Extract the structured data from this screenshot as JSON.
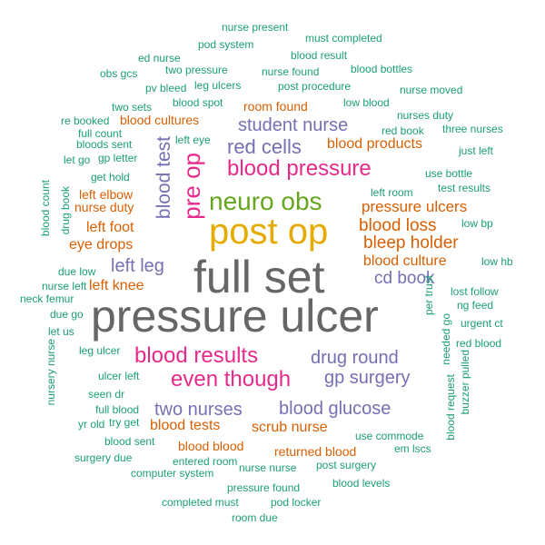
{
  "palette": {
    "teal": "#1b9e77",
    "orange": "#d95f02",
    "purple": "#7570b3",
    "pink": "#e7298a",
    "green": "#66a61e",
    "gold": "#e6ab02",
    "grey": "#666666"
  },
  "words": [
    {
      "text": "pressure ulcer",
      "freq": 10,
      "color": "grey"
    },
    {
      "text": "full set",
      "freq": 9.4,
      "color": "grey"
    },
    {
      "text": "post op",
      "freq": 7.8,
      "color": "gold"
    },
    {
      "text": "neuro obs",
      "freq": 6.4,
      "color": "green"
    },
    {
      "text": "pre op",
      "freq": 6.0,
      "color": "pink"
    },
    {
      "text": "blood pressure",
      "freq": 6.0,
      "color": "pink"
    },
    {
      "text": "blood results",
      "freq": 6.0,
      "color": "pink"
    },
    {
      "text": "blood test",
      "freq": 5.5,
      "color": "purple"
    },
    {
      "text": "even though",
      "freq": 5.6,
      "color": "pink"
    },
    {
      "text": "red cells",
      "freq": 5.2,
      "color": "purple"
    },
    {
      "text": "left leg",
      "freq": 4.8,
      "color": "purple"
    },
    {
      "text": "student nurse",
      "freq": 4.8,
      "color": "purple"
    },
    {
      "text": "drug round",
      "freq": 4.8,
      "color": "purple"
    },
    {
      "text": "two nurses",
      "freq": 4.8,
      "color": "purple"
    },
    {
      "text": "blood glucose",
      "freq": 4.8,
      "color": "purple"
    },
    {
      "text": "gp surgery",
      "freq": 4.6,
      "color": "purple"
    },
    {
      "text": "blood loss",
      "freq": 4.4,
      "color": "orange"
    },
    {
      "text": "bleep holder",
      "freq": 4.4,
      "color": "orange"
    },
    {
      "text": "cd book",
      "freq": 4.2,
      "color": "purple"
    },
    {
      "text": "pressure ulcers",
      "freq": 4.0,
      "color": "orange"
    },
    {
      "text": "blood products",
      "freq": 3.8,
      "color": "orange"
    },
    {
      "text": "left foot",
      "freq": 3.8,
      "color": "orange"
    },
    {
      "text": "blood culture",
      "freq": 3.8,
      "color": "orange"
    },
    {
      "text": "eye drops",
      "freq": 3.8,
      "color": "orange"
    },
    {
      "text": "left knee",
      "freq": 3.8,
      "color": "orange"
    },
    {
      "text": "blood tests",
      "freq": 3.8,
      "color": "orange"
    },
    {
      "text": "scrub nurse",
      "freq": 3.8,
      "color": "orange"
    },
    {
      "text": "room found",
      "freq": 3.3,
      "color": "orange"
    },
    {
      "text": "blood cultures",
      "freq": 3.3,
      "color": "orange"
    },
    {
      "text": "left elbow",
      "freq": 3.3,
      "color": "orange"
    },
    {
      "text": "nurse duty",
      "freq": 3.3,
      "color": "orange"
    },
    {
      "text": "blood blood",
      "freq": 3.3,
      "color": "orange"
    },
    {
      "text": "returned blood",
      "freq": 3.3,
      "color": "orange"
    },
    {
      "text": "nurse present",
      "freq": 2.7,
      "color": "teal"
    },
    {
      "text": "must completed",
      "freq": 2.7,
      "color": "teal"
    },
    {
      "text": "pod system",
      "freq": 2.7,
      "color": "teal"
    },
    {
      "text": "ed nurse",
      "freq": 2.7,
      "color": "teal"
    },
    {
      "text": "blood result",
      "freq": 2.7,
      "color": "teal"
    },
    {
      "text": "obs gcs",
      "freq": 2.7,
      "color": "teal"
    },
    {
      "text": "two pressure",
      "freq": 2.7,
      "color": "teal"
    },
    {
      "text": "nurse found",
      "freq": 2.7,
      "color": "teal"
    },
    {
      "text": "blood bottles",
      "freq": 2.7,
      "color": "teal"
    },
    {
      "text": "pv bleed",
      "freq": 2.7,
      "color": "teal"
    },
    {
      "text": "leg ulcers",
      "freq": 2.7,
      "color": "teal"
    },
    {
      "text": "post procedure",
      "freq": 2.7,
      "color": "teal"
    },
    {
      "text": "nurse moved",
      "freq": 2.7,
      "color": "teal"
    },
    {
      "text": "two sets",
      "freq": 2.7,
      "color": "teal"
    },
    {
      "text": "blood spot",
      "freq": 2.7,
      "color": "teal"
    },
    {
      "text": "low blood",
      "freq": 2.7,
      "color": "teal"
    },
    {
      "text": "re booked",
      "freq": 2.7,
      "color": "teal"
    },
    {
      "text": "nurses duty",
      "freq": 2.7,
      "color": "teal"
    },
    {
      "text": "full count",
      "freq": 2.7,
      "color": "teal"
    },
    {
      "text": "red book",
      "freq": 2.7,
      "color": "teal"
    },
    {
      "text": "three nurses",
      "freq": 2.7,
      "color": "teal"
    },
    {
      "text": "bloods sent",
      "freq": 2.7,
      "color": "teal"
    },
    {
      "text": "left eye",
      "freq": 2.7,
      "color": "teal"
    },
    {
      "text": "just left",
      "freq": 2.7,
      "color": "teal"
    },
    {
      "text": "let go",
      "freq": 2.7,
      "color": "teal"
    },
    {
      "text": "gp letter",
      "freq": 2.7,
      "color": "teal"
    },
    {
      "text": "get hold",
      "freq": 2.7,
      "color": "teal"
    },
    {
      "text": "use bottle",
      "freq": 2.7,
      "color": "teal"
    },
    {
      "text": "drug book",
      "freq": 2.7,
      "color": "teal"
    },
    {
      "text": "test results",
      "freq": 2.7,
      "color": "teal"
    },
    {
      "text": "blood count",
      "freq": 2.7,
      "color": "teal"
    },
    {
      "text": "left room",
      "freq": 2.7,
      "color": "teal"
    },
    {
      "text": "low bp",
      "freq": 2.7,
      "color": "teal"
    },
    {
      "text": "low hb",
      "freq": 2.7,
      "color": "teal"
    },
    {
      "text": "due low",
      "freq": 2.7,
      "color": "teal"
    },
    {
      "text": "nurse left",
      "freq": 2.7,
      "color": "teal"
    },
    {
      "text": "lost follow",
      "freq": 2.7,
      "color": "teal"
    },
    {
      "text": "neck femur",
      "freq": 2.7,
      "color": "teal"
    },
    {
      "text": "per trust",
      "freq": 2.7,
      "color": "teal"
    },
    {
      "text": "ng feed",
      "freq": 2.7,
      "color": "teal"
    },
    {
      "text": "due go",
      "freq": 2.7,
      "color": "teal"
    },
    {
      "text": "urgent ct",
      "freq": 2.7,
      "color": "teal"
    },
    {
      "text": "let us",
      "freq": 2.7,
      "color": "teal"
    },
    {
      "text": "needed go",
      "freq": 2.7,
      "color": "teal"
    },
    {
      "text": "red blood",
      "freq": 2.7,
      "color": "teal"
    },
    {
      "text": "leg ulcer",
      "freq": 2.7,
      "color": "teal"
    },
    {
      "text": "nursery nurse",
      "freq": 2.7,
      "color": "teal"
    },
    {
      "text": "buzzer pulled",
      "freq": 2.7,
      "color": "teal"
    },
    {
      "text": "ulcer left",
      "freq": 2.7,
      "color": "teal"
    },
    {
      "text": "seen dr",
      "freq": 2.7,
      "color": "teal"
    },
    {
      "text": "full blood",
      "freq": 2.7,
      "color": "teal"
    },
    {
      "text": "blood request",
      "freq": 2.7,
      "color": "teal"
    },
    {
      "text": "yr old",
      "freq": 2.7,
      "color": "teal"
    },
    {
      "text": "try get",
      "freq": 2.7,
      "color": "teal"
    },
    {
      "text": "use commode",
      "freq": 2.7,
      "color": "teal"
    },
    {
      "text": "blood sent",
      "freq": 2.7,
      "color": "teal"
    },
    {
      "text": "em lscs",
      "freq": 2.7,
      "color": "teal"
    },
    {
      "text": "surgery due",
      "freq": 2.7,
      "color": "teal"
    },
    {
      "text": "entered room",
      "freq": 2.7,
      "color": "teal"
    },
    {
      "text": "nurse nurse",
      "freq": 2.7,
      "color": "teal"
    },
    {
      "text": "post surgery",
      "freq": 2.7,
      "color": "teal"
    },
    {
      "text": "computer system",
      "freq": 2.7,
      "color": "teal"
    },
    {
      "text": "pressure found",
      "freq": 2.7,
      "color": "teal"
    },
    {
      "text": "blood levels",
      "freq": 2.7,
      "color": "teal"
    },
    {
      "text": "completed must",
      "freq": 2.7,
      "color": "teal"
    },
    {
      "text": "pod locker",
      "freq": 2.7,
      "color": "teal"
    },
    {
      "text": "room due",
      "freq": 2.7,
      "color": "teal"
    }
  ]
}
